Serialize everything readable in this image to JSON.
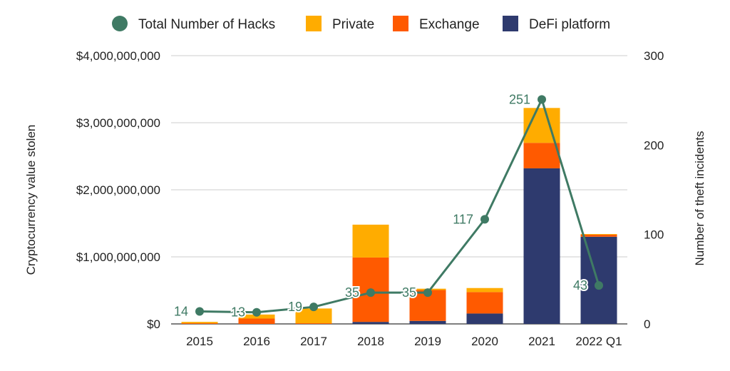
{
  "chart_data": {
    "type": "bar",
    "stacked": true,
    "categories": [
      "2015",
      "2016",
      "2017",
      "2018",
      "2019",
      "2020",
      "2021",
      "2022 Q1"
    ],
    "series": [
      {
        "name": "DeFi platform",
        "color": "#2e3a6e",
        "values": [
          0,
          0,
          0,
          30000000,
          45000000,
          155000000,
          2320000000,
          1300000000
        ]
      },
      {
        "name": "Exchange",
        "color": "#ff5a00",
        "values": [
          10000000,
          80000000,
          10000000,
          960000000,
          460000000,
          320000000,
          380000000,
          30000000
        ]
      },
      {
        "name": "Private",
        "color": "#ffac00",
        "values": [
          20000000,
          60000000,
          220000000,
          490000000,
          20000000,
          60000000,
          520000000,
          10000000
        ]
      }
    ],
    "line_series": {
      "name": "Total Number of Hacks",
      "color": "#3f7a64",
      "axis": "right",
      "values": [
        14,
        13,
        19,
        35,
        35,
        117,
        251,
        43
      ],
      "labels": [
        "14",
        "13",
        "19",
        "35",
        "35",
        "117",
        "251",
        "43"
      ]
    },
    "y_left": {
      "label": "Cryptocurrency value stolen",
      "range": [
        0,
        4000000000
      ],
      "ticks": [
        0,
        1000000000,
        2000000000,
        3000000000,
        4000000000
      ],
      "tick_labels": [
        "$0",
        "$1,000,000,000",
        "$2,000,000,000",
        "$3,000,000,000",
        "$4,000,000,000"
      ]
    },
    "y_right": {
      "label": "Number of theft incidents",
      "range": [
        0,
        300
      ],
      "ticks": [
        0,
        100,
        200,
        300
      ],
      "tick_labels": [
        "0",
        "100",
        "200",
        "300"
      ]
    },
    "legend": {
      "position": "top",
      "entries": [
        {
          "label": "Total Number of Hacks",
          "color": "#3f7a64",
          "shape": "circle"
        },
        {
          "label": "Private",
          "color": "#ffac00",
          "shape": "square"
        },
        {
          "label": "Exchange",
          "color": "#ff5a00",
          "shape": "square"
        },
        {
          "label": "DeFi platform",
          "color": "#2e3a6e",
          "shape": "square"
        }
      ]
    },
    "grid": true
  }
}
